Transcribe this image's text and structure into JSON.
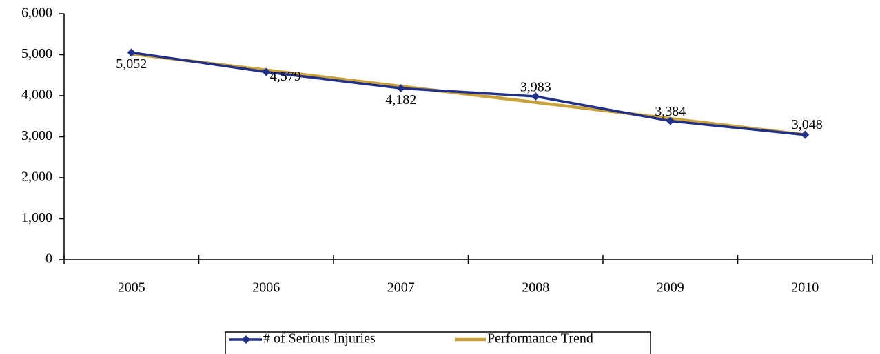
{
  "chart_data": {
    "type": "line",
    "categories": [
      "2005",
      "2006",
      "2007",
      "2008",
      "2009",
      "2010"
    ],
    "series": [
      {
        "name": "# of Serious Injuries",
        "color": "#1f2f8a",
        "marker": "diamond",
        "values": [
          5052,
          4579,
          4182,
          3983,
          3384,
          3048
        ],
        "value_labels": [
          "5,052",
          "4,579",
          "4,182",
          "3,983",
          "3,384",
          "3,048"
        ]
      },
      {
        "name": "Performance Trend",
        "color": "#c9a13b",
        "values": [
          5020,
          4626,
          4232,
          3838,
          3444,
          3050
        ]
      }
    ],
    "ylim": [
      0,
      6000
    ],
    "yticks": [
      0,
      {
        "value": 1000,
        "label": "1,000"
      },
      {
        "value": 2000,
        "label": "2,000"
      },
      {
        "value": 3000,
        "label": "3,000"
      },
      {
        "value": 4000,
        "label": "4,000"
      },
      {
        "value": 5000,
        "label": "5,000"
      },
      {
        "value": 6000,
        "label": "6,000"
      }
    ],
    "grid": false,
    "legend": "bottom"
  }
}
